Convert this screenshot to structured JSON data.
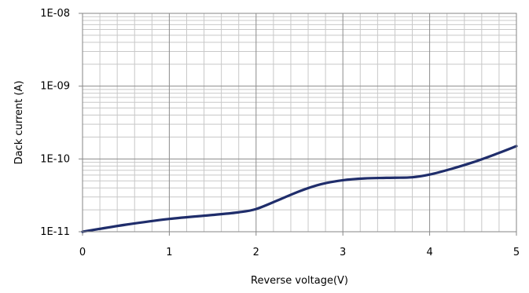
{
  "chart_data": {
    "type": "line",
    "xlabel": "Reverse voltage(V)",
    "ylabel": "Dack current (A)",
    "xlim": [
      0,
      5
    ],
    "ylim": [
      1e-11,
      1e-08
    ],
    "yscale": "log",
    "grid": true,
    "legend": "none",
    "x_ticks": [
      "0",
      "1",
      "2",
      "3",
      "4",
      "5"
    ],
    "y_ticks": [
      "1E-11",
      "1E-10",
      "1E-09",
      "1E-08"
    ],
    "series": [
      {
        "color": "#1f2d6b",
        "x": [
          0,
          0.5,
          1,
          1.5,
          1.8,
          2,
          2.25,
          2.5,
          2.75,
          3,
          3.25,
          3.5,
          3.8,
          4,
          4.25,
          4.5,
          4.75,
          5
        ],
        "y": [
          1e-11,
          1.25e-11,
          1.5e-11,
          1.7e-11,
          1.85e-11,
          2.05e-11,
          2.7e-11,
          3.6e-11,
          4.5e-11,
          5.1e-11,
          5.4e-11,
          5.5e-11,
          5.6e-11,
          6.1e-11,
          7.3e-11,
          9e-11,
          1.15e-10,
          1.5e-10
        ]
      }
    ]
  }
}
